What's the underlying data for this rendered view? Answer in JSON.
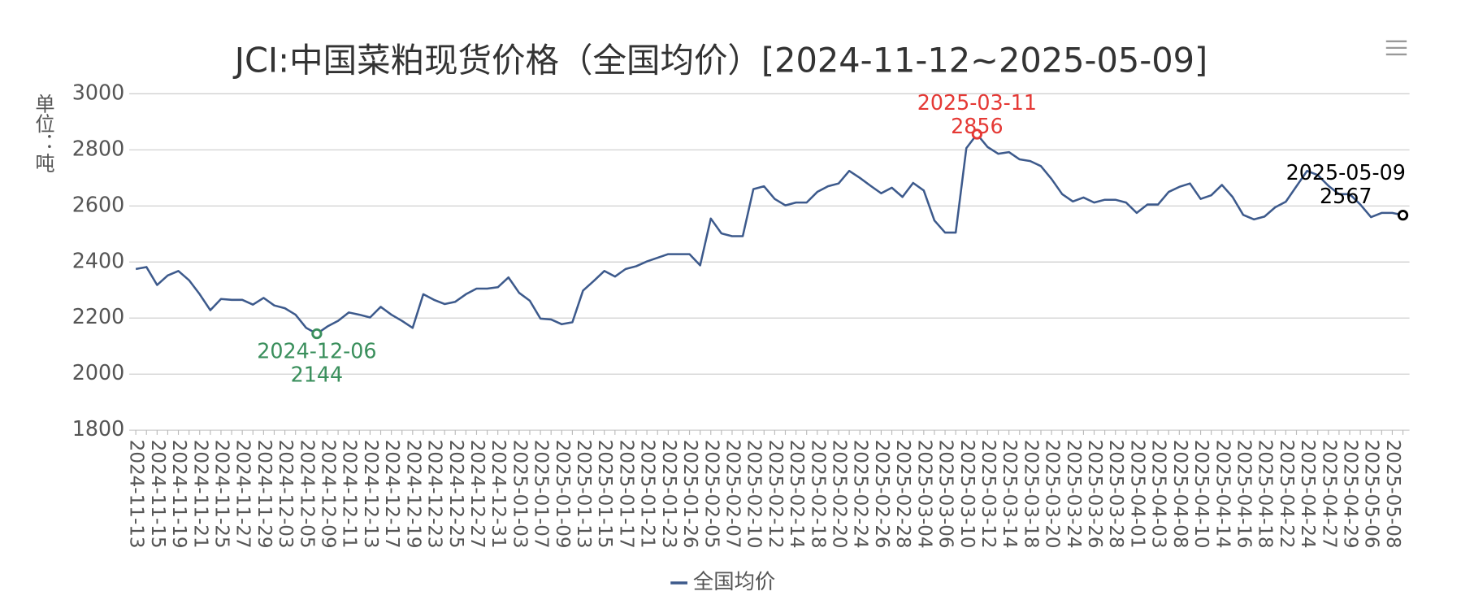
{
  "chart_data": {
    "type": "line",
    "title": "JCI:中国菜粕现货价格（全国均价）[2024-11-12~2025-05-09]",
    "y_label": "单位：吨",
    "categories": [
      "2024-11-13",
      null,
      "2024-11-15",
      null,
      "2024-11-19",
      null,
      "2024-11-21",
      null,
      "2024-11-25",
      null,
      "2024-11-27",
      null,
      "2024-11-29",
      null,
      "2024-12-03",
      null,
      "2024-12-05",
      null,
      "2024-12-09",
      null,
      "2024-12-11",
      null,
      "2024-12-13",
      null,
      "2024-12-17",
      null,
      "2024-12-19",
      null,
      "2024-12-23",
      null,
      "2024-12-25",
      null,
      "2024-12-27",
      null,
      "2024-12-31",
      null,
      "2025-01-03",
      null,
      "2025-01-07",
      null,
      "2025-01-09",
      null,
      "2025-01-13",
      null,
      "2025-01-15",
      null,
      "2025-01-17",
      null,
      "2025-01-21",
      null,
      "2025-01-23",
      null,
      "2025-01-26",
      null,
      "2025-02-05",
      null,
      "2025-02-07",
      null,
      "2025-02-10",
      null,
      "2025-02-12",
      null,
      "2025-02-14",
      null,
      "2025-02-18",
      null,
      "2025-02-20",
      null,
      "2025-02-24",
      null,
      "2025-02-26",
      null,
      "2025-02-28",
      null,
      "2025-03-04",
      null,
      "2025-03-06",
      null,
      "2025-03-10",
      null,
      "2025-03-12",
      null,
      "2025-03-14",
      null,
      "2025-03-18",
      null,
      "2025-03-20",
      null,
      "2025-03-24",
      null,
      "2025-03-26",
      null,
      "2025-03-28",
      null,
      "2025-04-01",
      null,
      "2025-04-03",
      null,
      "2025-04-08",
      null,
      "2025-04-10",
      null,
      "2025-04-14",
      null,
      "2025-04-16",
      null,
      "2025-04-18",
      null,
      "2025-04-22",
      null,
      "2025-04-24",
      null,
      "2025-04-27",
      null,
      "2025-04-29",
      null,
      "2025-05-06",
      null,
      "2025-05-08",
      null
    ],
    "series": [
      {
        "name": "全国均价",
        "color": "#3d5a8c",
        "values": [
          2375,
          2382,
          2318,
          2352,
          2368,
          2335,
          2285,
          2228,
          2268,
          2265,
          2265,
          2248,
          2272,
          2245,
          2235,
          2212,
          2165,
          2144,
          2170,
          2190,
          2220,
          2212,
          2202,
          2240,
          2212,
          2190,
          2165,
          2285,
          2265,
          2250,
          2258,
          2285,
          2305,
          2305,
          2310,
          2345,
          2290,
          2262,
          2198,
          2195,
          2178,
          2185,
          2298,
          2332,
          2368,
          2348,
          2375,
          2385,
          2402,
          2415,
          2428,
          2428,
          2428,
          2388,
          2555,
          2502,
          2492,
          2492,
          2660,
          2670,
          2625,
          2602,
          2612,
          2612,
          2650,
          2670,
          2680,
          2725,
          2700,
          2672,
          2645,
          2665,
          2632,
          2682,
          2655,
          2548,
          2505,
          2505,
          2806,
          2856,
          2810,
          2786,
          2792,
          2766,
          2760,
          2742,
          2696,
          2642,
          2616,
          2630,
          2612,
          2622,
          2622,
          2612,
          2575,
          2605,
          2605,
          2650,
          2668,
          2680,
          2625,
          2638,
          2675,
          2632,
          2568,
          2552,
          2562,
          2595,
          2615,
          2670,
          2725,
          2710,
          2672,
          2642,
          2642,
          2605,
          2560,
          2575,
          2575,
          2567
        ]
      }
    ],
    "annotations": [
      {
        "date": "2024-12-06",
        "value": 2144,
        "color": "#3a8f5c",
        "position": "below"
      },
      {
        "date": "2025-03-11",
        "value": 2856,
        "color": "#e53935",
        "position": "above"
      },
      {
        "date": "2025-05-09",
        "value": 2567,
        "color": "#000000",
        "position": "above-left"
      }
    ],
    "ylim": [
      1800,
      3000
    ],
    "yticks": [
      1800,
      2000,
      2200,
      2400,
      2600,
      2800,
      3000
    ],
    "grid": true,
    "legend": "bottom"
  }
}
